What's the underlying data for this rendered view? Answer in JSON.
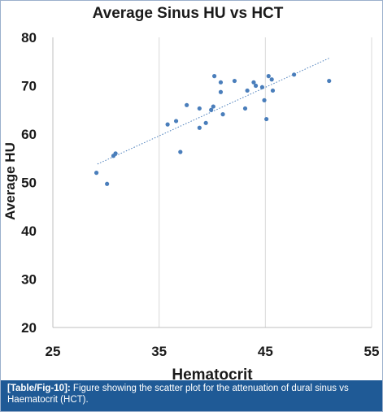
{
  "chart_data": {
    "type": "scatter",
    "title": "Average Sinus HU vs HCT",
    "xlabel": "Hematocrit",
    "ylabel": "Average HU",
    "xlim": [
      25,
      55
    ],
    "ylim": [
      20,
      80
    ],
    "x_ticks": [
      "25",
      "35",
      "45",
      "55"
    ],
    "y_ticks": [
      "20",
      "30",
      "40",
      "50",
      "60",
      "70",
      "80"
    ],
    "grid": "vertical",
    "trendline": {
      "style": "dotted linear",
      "x": [
        29.2,
        51.1
      ],
      "y": [
        53.8,
        75.8
      ]
    },
    "points": [
      {
        "x": 29.1,
        "y": 52.0
      },
      {
        "x": 30.1,
        "y": 49.7
      },
      {
        "x": 30.7,
        "y": 55.5
      },
      {
        "x": 30.9,
        "y": 56.0
      },
      {
        "x": 35.8,
        "y": 62.0
      },
      {
        "x": 36.6,
        "y": 62.7
      },
      {
        "x": 37.0,
        "y": 56.3
      },
      {
        "x": 37.6,
        "y": 66.0
      },
      {
        "x": 38.8,
        "y": 65.3
      },
      {
        "x": 38.8,
        "y": 61.3
      },
      {
        "x": 39.4,
        "y": 62.3
      },
      {
        "x": 39.9,
        "y": 65.0
      },
      {
        "x": 40.1,
        "y": 65.7
      },
      {
        "x": 40.2,
        "y": 72.0
      },
      {
        "x": 40.8,
        "y": 70.7
      },
      {
        "x": 40.8,
        "y": 68.7
      },
      {
        "x": 41.0,
        "y": 64.1
      },
      {
        "x": 42.1,
        "y": 71.0
      },
      {
        "x": 43.1,
        "y": 65.3
      },
      {
        "x": 43.3,
        "y": 69.0
      },
      {
        "x": 43.9,
        "y": 70.7
      },
      {
        "x": 44.1,
        "y": 70.0
      },
      {
        "x": 44.7,
        "y": 69.7
      },
      {
        "x": 44.9,
        "y": 67.0
      },
      {
        "x": 45.1,
        "y": 63.1
      },
      {
        "x": 45.3,
        "y": 72.0
      },
      {
        "x": 45.6,
        "y": 71.3
      },
      {
        "x": 45.7,
        "y": 69.0
      },
      {
        "x": 47.7,
        "y": 72.3
      },
      {
        "x": 51.0,
        "y": 71.0
      }
    ],
    "colors": {
      "marker": "#4a7ebb",
      "trendline": "#4a7ebb",
      "grid": "#d9d9d9",
      "axis": "#bfbfbf"
    }
  },
  "caption": {
    "ref": "[Table/Fig-10]:",
    "text": " Figure showing the scatter plot for the attenuation of dural sinus vs Haematocrit (HCT)."
  },
  "colors": {
    "caption_bg": "#1f5a96",
    "caption_text": "#ffffff"
  }
}
